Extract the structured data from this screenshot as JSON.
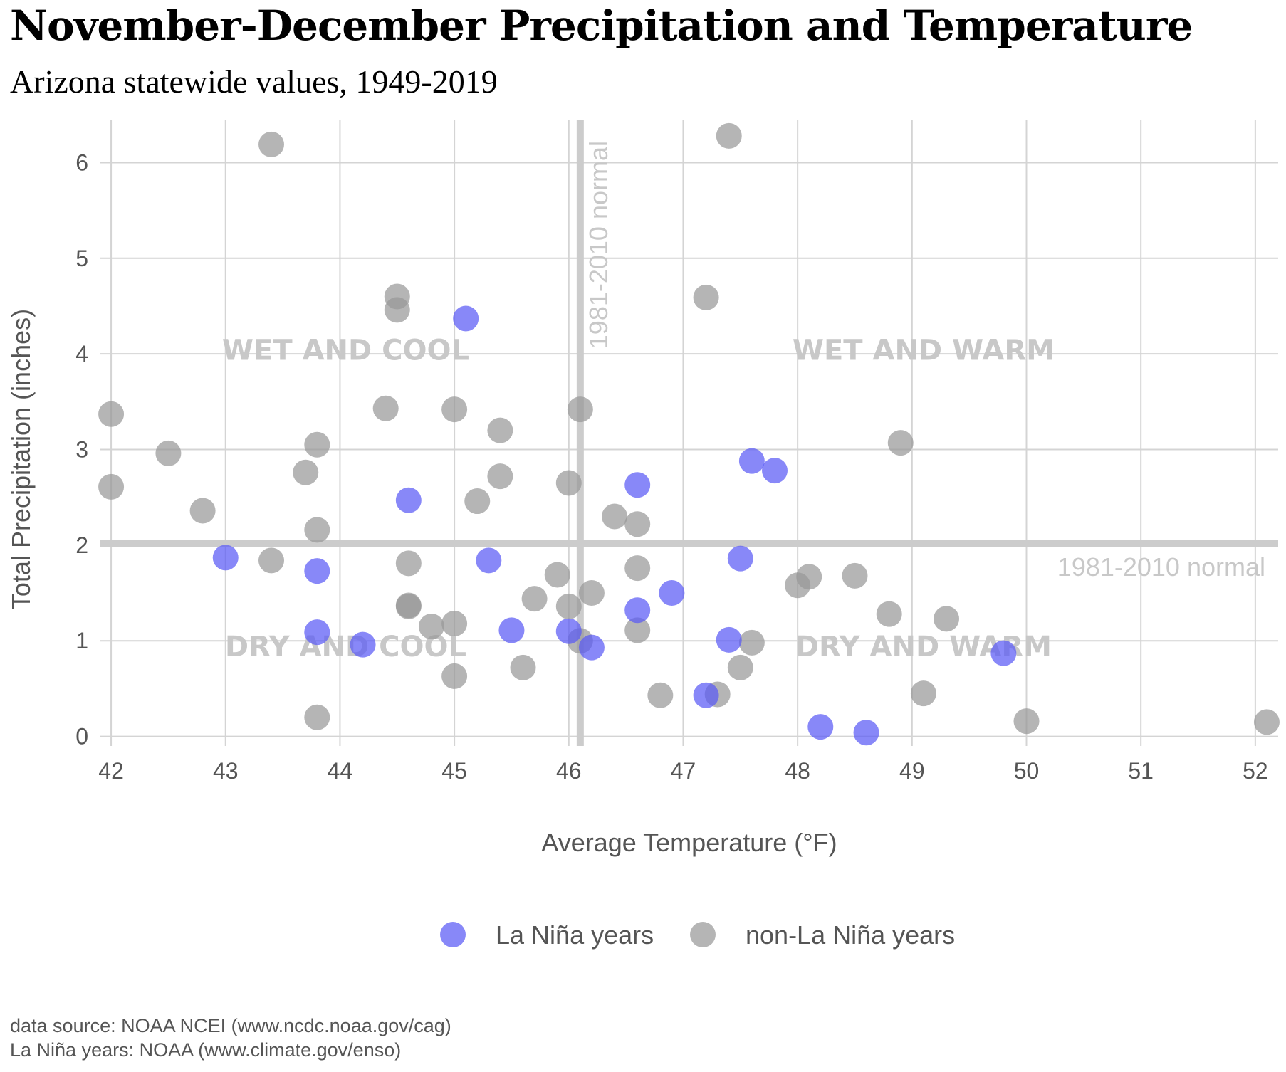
{
  "chart_data": {
    "type": "scatter",
    "title": "November-December Precipitation and Temperature",
    "subtitle": "Arizona statewide values, 1949-2019",
    "xlabel": "Average Temperature (°F)",
    "ylabel": "Total Precipitation (inches)",
    "xlim": [
      41.9,
      52.2
    ],
    "ylim": [
      -0.1,
      6.45
    ],
    "x_ticks": [
      42,
      43,
      44,
      45,
      46,
      47,
      48,
      49,
      50,
      51,
      52
    ],
    "y_ticks": [
      0,
      1,
      2,
      3,
      4,
      5,
      6
    ],
    "grid": true,
    "legend_position": "bottom",
    "reference_lines": {
      "x_normal": 46.1,
      "y_normal": 2.02,
      "label": "1981-2010 normal"
    },
    "quadrant_labels": [
      "WET AND COOL",
      "WET AND WARM",
      "DRY AND COOL",
      "DRY AND WARM"
    ],
    "series": [
      {
        "name": "La Niña years",
        "color": "#5a5af5",
        "points": [
          [
            43.0,
            1.87
          ],
          [
            43.8,
            1.73
          ],
          [
            43.8,
            1.09
          ],
          [
            44.2,
            0.96
          ],
          [
            44.6,
            2.47
          ],
          [
            45.1,
            4.37
          ],
          [
            45.3,
            1.84
          ],
          [
            45.5,
            1.11
          ],
          [
            46.0,
            1.1
          ],
          [
            46.2,
            0.93
          ],
          [
            46.6,
            2.63
          ],
          [
            46.6,
            1.32
          ],
          [
            46.9,
            1.5
          ],
          [
            47.2,
            0.43
          ],
          [
            47.4,
            1.01
          ],
          [
            47.5,
            1.86
          ],
          [
            47.6,
            2.88
          ],
          [
            47.8,
            2.78
          ],
          [
            48.2,
            0.1
          ],
          [
            48.6,
            0.04
          ],
          [
            49.8,
            0.87
          ]
        ]
      },
      {
        "name": "non-La Niña years",
        "color": "#999999",
        "points": [
          [
            42.0,
            3.37
          ],
          [
            42.0,
            2.61
          ],
          [
            42.5,
            2.96
          ],
          [
            42.8,
            2.36
          ],
          [
            43.4,
            6.19
          ],
          [
            43.4,
            1.84
          ],
          [
            43.7,
            2.76
          ],
          [
            43.8,
            3.05
          ],
          [
            43.8,
            2.16
          ],
          [
            43.8,
            0.2
          ],
          [
            44.4,
            3.43
          ],
          [
            44.5,
            4.6
          ],
          [
            44.5,
            4.46
          ],
          [
            44.6,
            1.81
          ],
          [
            44.6,
            1.37
          ],
          [
            44.6,
            1.36
          ],
          [
            44.8,
            1.15
          ],
          [
            45.0,
            3.42
          ],
          [
            45.0,
            1.18
          ],
          [
            45.0,
            0.63
          ],
          [
            45.2,
            2.46
          ],
          [
            45.4,
            3.2
          ],
          [
            45.4,
            2.72
          ],
          [
            45.6,
            0.72
          ],
          [
            45.7,
            1.44
          ],
          [
            45.9,
            1.69
          ],
          [
            46.0,
            2.65
          ],
          [
            46.0,
            1.36
          ],
          [
            46.1,
            3.42
          ],
          [
            46.1,
            1.0
          ],
          [
            46.2,
            1.5
          ],
          [
            46.4,
            2.3
          ],
          [
            46.6,
            2.22
          ],
          [
            46.6,
            1.76
          ],
          [
            46.6,
            1.11
          ],
          [
            46.8,
            0.43
          ],
          [
            47.2,
            4.59
          ],
          [
            47.3,
            0.44
          ],
          [
            47.4,
            6.28
          ],
          [
            47.5,
            0.72
          ],
          [
            47.6,
            0.98
          ],
          [
            48.0,
            1.58
          ],
          [
            48.1,
            1.67
          ],
          [
            48.5,
            1.68
          ],
          [
            48.8,
            1.28
          ],
          [
            48.9,
            3.07
          ],
          [
            49.1,
            0.45
          ],
          [
            49.3,
            1.23
          ],
          [
            50.0,
            0.16
          ],
          [
            52.1,
            0.15
          ]
        ]
      }
    ]
  },
  "caption": {
    "line1": "data source: NOAA NCEI (www.ncdc.noaa.gov/cag)",
    "line2": "La Niña years: NOAA (www.climate.gov/enso)"
  }
}
